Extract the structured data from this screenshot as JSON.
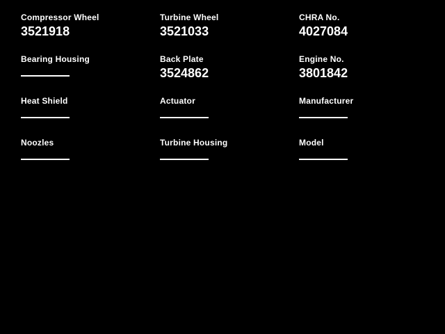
{
  "theme": {
    "background_color": "#000000",
    "text_color": "#ffffff"
  },
  "form": {
    "fields": [
      {
        "label": "Compressor Wheel",
        "value": "3521918",
        "filled": true
      },
      {
        "label": "Turbine Wheel",
        "value": "3521033",
        "filled": true
      },
      {
        "label": "CHRA No.",
        "value": "4027084",
        "filled": true
      },
      {
        "label": "Bearing Housing",
        "value": "",
        "filled": false
      },
      {
        "label": "Back Plate",
        "value": "3524862",
        "filled": true
      },
      {
        "label": "Engine No.",
        "value": "3801842",
        "filled": true
      },
      {
        "label": "Heat Shield",
        "value": "",
        "filled": false
      },
      {
        "label": "Actuator",
        "value": "",
        "filled": false
      },
      {
        "label": "Manufacturer",
        "value": "",
        "filled": false
      },
      {
        "label": "Noozles",
        "value": "",
        "filled": false
      },
      {
        "label": "Turbine Housing",
        "value": "",
        "filled": false
      },
      {
        "label": "Model",
        "value": "",
        "filled": false
      }
    ]
  }
}
